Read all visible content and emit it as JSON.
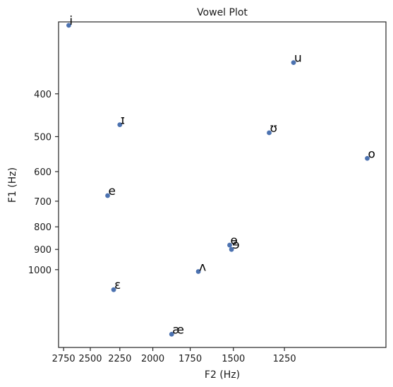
{
  "chart_data": {
    "type": "scatter",
    "title": "Vowel Plot",
    "xlabel": "F2 (Hz)",
    "ylabel": "F1 (Hz)",
    "x_scale": "log",
    "y_scale": "log",
    "x_inverted": true,
    "y_inverted": true,
    "xlim": [
      2800,
      870
    ],
    "ylim": [
      275,
      1500
    ],
    "xticks": [
      {
        "value": 2750,
        "label": "2750"
      },
      {
        "value": 2500,
        "label": "2500"
      },
      {
        "value": 2250,
        "label": "2250"
      },
      {
        "value": 2000,
        "label": "2000"
      },
      {
        "value": 1750,
        "label": "1750"
      },
      {
        "value": 1500,
        "label": "1500"
      },
      {
        "value": 1250,
        "label": "1250"
      }
    ],
    "yticks": [
      {
        "value": 400,
        "label": "400"
      },
      {
        "value": 500,
        "label": "500"
      },
      {
        "value": 600,
        "label": "600"
      },
      {
        "value": 700,
        "label": "700"
      },
      {
        "value": 800,
        "label": "800"
      },
      {
        "value": 900,
        "label": "900"
      },
      {
        "value": 1000,
        "label": "1000"
      }
    ],
    "grid": false,
    "marker_color": "#4c72b0",
    "points": [
      {
        "label": "i",
        "x": 2700,
        "y": 280
      },
      {
        "label": "u",
        "x": 1210,
        "y": 340
      },
      {
        "label": "ɪ",
        "x": 2250,
        "y": 470
      },
      {
        "label": "ʊ",
        "x": 1320,
        "y": 490
      },
      {
        "label": "o",
        "x": 930,
        "y": 560
      },
      {
        "label": "e",
        "x": 2350,
        "y": 680
      },
      {
        "label": "ɵ",
        "x": 1520,
        "y": 880
      },
      {
        "label": "ɘ",
        "x": 1510,
        "y": 900
      },
      {
        "label": "ʌ",
        "x": 1700,
        "y": 1010
      },
      {
        "label": "ɛ",
        "x": 2300,
        "y": 1110
      },
      {
        "label": "æ",
        "x": 1870,
        "y": 1400
      }
    ]
  }
}
